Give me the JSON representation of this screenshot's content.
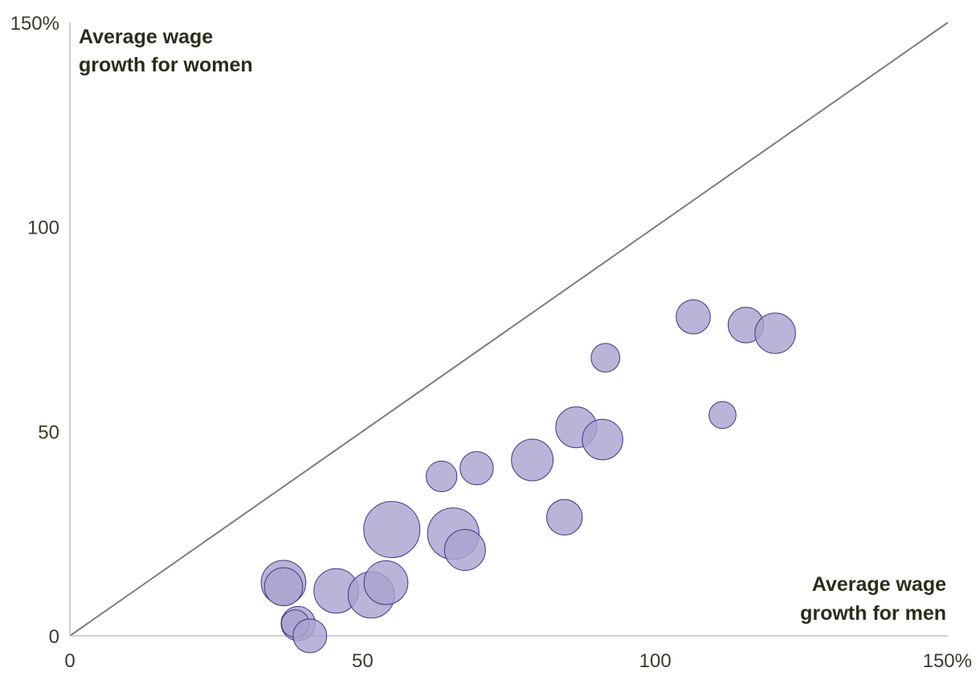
{
  "chart_data": {
    "type": "scatter",
    "subtype": "bubble",
    "title": "",
    "xlabel": [
      "Average wage",
      "growth for men"
    ],
    "ylabel": [
      "Average wage",
      "growth for women"
    ],
    "xlim": [
      0,
      150
    ],
    "ylim": [
      0,
      150
    ],
    "x_ticks": [
      {
        "value": 0,
        "label": "0"
      },
      {
        "value": 50,
        "label": "50"
      },
      {
        "value": 100,
        "label": "100"
      },
      {
        "value": 150,
        "label": "150%"
      }
    ],
    "y_ticks": [
      {
        "value": 0,
        "label": "0"
      },
      {
        "value": 50,
        "label": "50"
      },
      {
        "value": 100,
        "label": "100"
      },
      {
        "value": 150,
        "label": "150%"
      }
    ],
    "reference_line": {
      "type": "equality",
      "from": [
        0,
        0
      ],
      "to": [
        150,
        150
      ]
    },
    "grid": false,
    "colors": {
      "bubble_fill": "#a9a3cf",
      "bubble_stroke": "#3d3785",
      "reference_line": "#7d7d7d",
      "axis": "#c4c4c4",
      "text": "#3a3a2e"
    },
    "points": [
      {
        "x": 55,
        "y": 26,
        "size": 1.0
      },
      {
        "x": 65.5,
        "y": 25,
        "size": 0.84
      },
      {
        "x": 67.5,
        "y": 21,
        "size": 0.53
      },
      {
        "x": 36.5,
        "y": 13,
        "size": 0.63
      },
      {
        "x": 36.5,
        "y": 12,
        "size": 0.46
      },
      {
        "x": 45.5,
        "y": 11,
        "size": 0.63
      },
      {
        "x": 51.5,
        "y": 10,
        "size": 0.68
      },
      {
        "x": 54,
        "y": 13,
        "size": 0.61
      },
      {
        "x": 39,
        "y": 3,
        "size": 0.37
      },
      {
        "x": 38.5,
        "y": 3,
        "size": 0.24
      },
      {
        "x": 41,
        "y": 0,
        "size": 0.36
      },
      {
        "x": 63.5,
        "y": 39,
        "size": 0.3
      },
      {
        "x": 69.5,
        "y": 41,
        "size": 0.35
      },
      {
        "x": 79,
        "y": 43,
        "size": 0.55
      },
      {
        "x": 84.5,
        "y": 29,
        "size": 0.4
      },
      {
        "x": 86.5,
        "y": 51,
        "size": 0.53
      },
      {
        "x": 91,
        "y": 48,
        "size": 0.52
      },
      {
        "x": 91.5,
        "y": 68,
        "size": 0.26
      },
      {
        "x": 106.5,
        "y": 78,
        "size": 0.37
      },
      {
        "x": 111.5,
        "y": 54,
        "size": 0.23
      },
      {
        "x": 115.5,
        "y": 76,
        "size": 0.4
      },
      {
        "x": 120.5,
        "y": 74,
        "size": 0.52
      }
    ]
  }
}
